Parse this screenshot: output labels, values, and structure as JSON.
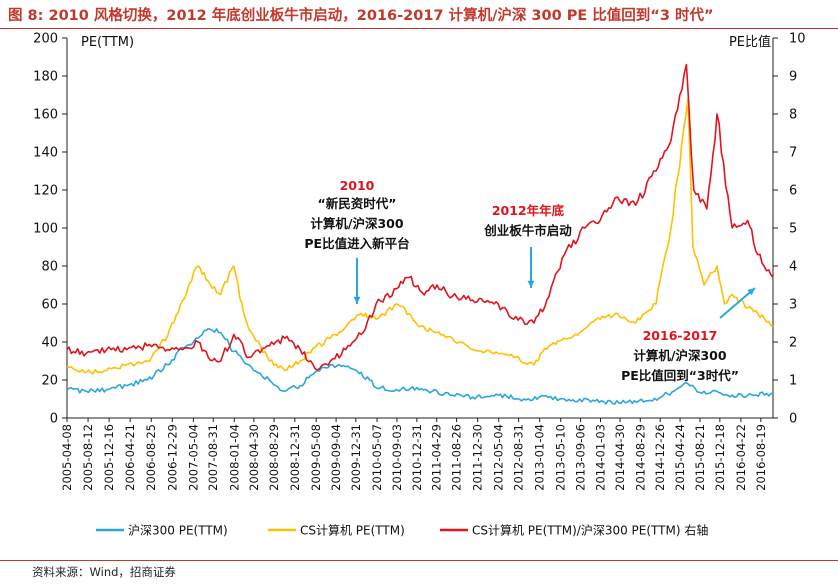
{
  "figure": {
    "title": "图 8:  2010 风格切换，2012 年底创业板牛市启动，2016-2017 计算机/沪深 300 PE 比值回到“3 时代”",
    "source": "资料来源：Wind，招商证券"
  },
  "colors": {
    "hs300": "#2aa6dc",
    "cs_computer": "#ffc000",
    "ratio": "#e0141e",
    "title_red": "#c0392b",
    "arrow": "#29a8df"
  },
  "chart_data": {
    "type": "line",
    "left_axis": {
      "label": "PE(TTM)",
      "range": [
        0,
        200
      ],
      "ticks": [
        "0",
        "20",
        "40",
        "60",
        "80",
        "100",
        "120",
        "140",
        "160",
        "180",
        "200"
      ]
    },
    "right_axis": {
      "label": "PE比值",
      "range": [
        0,
        10
      ],
      "ticks": [
        "0",
        "1",
        "2",
        "3",
        "4",
        "5",
        "6",
        "7",
        "8",
        "9",
        "10"
      ]
    },
    "x_range": [
      "2005-04-08",
      "2016-10-31"
    ],
    "x_ticks": [
      "2005-04-08",
      "2005-08-12",
      "2005-12-16",
      "2006-04-21",
      "2006-08-25",
      "2006-12-29",
      "2007-05-04",
      "2007-08-31",
      "2008-01-04",
      "2008-04-30",
      "2008-08-29",
      "2008-12-31",
      "2009-05-08",
      "2009-09-04",
      "2009-12-31",
      "2010-05-07",
      "2010-09-03",
      "2010-12-31",
      "2011-04-29",
      "2011-08-26",
      "2011-12-30",
      "2012-05-04",
      "2012-08-31",
      "2013-01-04",
      "2013-05-10",
      "2013-09-06",
      "2014-01-03",
      "2014-04-30",
      "2014-08-29",
      "2014-12-26",
      "2015-04-24",
      "2015-08-21",
      "2015-12-18",
      "2016-04-22",
      "2016-08-19"
    ],
    "grid": false,
    "legend_position": "bottom",
    "series": [
      {
        "name": "沪深300 PE(TTM)",
        "axis": "left",
        "x": [
          "2005-04-08",
          "2005-08-01",
          "2005-12-01",
          "2006-04-01",
          "2006-08-01",
          "2006-12-01",
          "2007-03-01",
          "2007-06-01",
          "2007-08-01",
          "2007-10-15",
          "2008-01-01",
          "2008-04-01",
          "2008-08-01",
          "2008-11-01",
          "2009-02-01",
          "2009-05-01",
          "2009-08-01",
          "2009-11-01",
          "2010-02-01",
          "2010-05-01",
          "2010-09-01",
          "2011-01-01",
          "2011-04-01",
          "2011-08-01",
          "2011-12-01",
          "2012-05-01",
          "2012-10-01",
          "2013-01-01",
          "2013-06-01",
          "2013-12-01",
          "2014-06-01",
          "2014-10-01",
          "2015-01-01",
          "2015-04-01",
          "2015-06-10",
          "2015-09-01",
          "2015-12-01",
          "2016-03-01",
          "2016-06-01",
          "2016-10-31"
        ],
        "values": [
          15,
          14,
          15,
          17,
          20,
          28,
          37,
          42,
          47,
          45,
          35,
          28,
          20,
          14,
          17,
          24,
          28,
          27,
          24,
          16,
          15,
          16,
          14,
          12,
          11,
          12,
          10,
          11,
          10,
          9,
          8,
          9,
          11,
          15,
          18,
          13,
          14,
          12,
          12,
          13
        ]
      },
      {
        "name": "CS计算机 PE(TTM)",
        "axis": "left",
        "x": [
          "2005-04-08",
          "2005-08-01",
          "2005-12-01",
          "2006-04-01",
          "2006-08-01",
          "2006-12-01",
          "2007-03-01",
          "2007-06-01",
          "2007-08-01",
          "2007-10-15",
          "2008-01-01",
          "2008-03-01",
          "2008-04-15",
          "2008-08-01",
          "2008-11-01",
          "2009-02-01",
          "2009-05-01",
          "2009-08-01",
          "2009-11-01",
          "2010-02-01",
          "2010-05-01",
          "2010-09-01",
          "2010-11-15",
          "2011-01-15",
          "2011-04-01",
          "2011-08-01",
          "2011-12-01",
          "2012-05-01",
          "2012-08-01",
          "2012-12-01",
          "2013-03-01",
          "2013-06-01",
          "2013-09-01",
          "2014-01-01",
          "2014-04-01",
          "2014-08-01",
          "2014-12-01",
          "2015-03-01",
          "2015-06-10",
          "2015-07-10",
          "2015-09-15",
          "2015-12-01",
          "2016-01-15",
          "2016-03-01",
          "2016-06-01",
          "2016-08-01",
          "2016-10-31"
        ],
        "values": [
          27,
          24,
          25,
          28,
          30,
          43,
          62,
          80,
          72,
          65,
          80,
          55,
          45,
          30,
          25,
          30,
          37,
          42,
          48,
          55,
          52,
          60,
          55,
          48,
          46,
          42,
          36,
          34,
          32,
          28,
          38,
          42,
          45,
          52,
          55,
          50,
          60,
          100,
          168,
          90,
          70,
          80,
          60,
          65,
          58,
          55,
          48
        ]
      },
      {
        "name": "CS计算机 PE(TTM)/沪深300 PE(TTM) 右轴",
        "axis": "right",
        "x": [
          "2005-04-08",
          "2005-08-01",
          "2005-12-01",
          "2006-04-01",
          "2006-08-01",
          "2006-12-01",
          "2007-03-01",
          "2007-06-01",
          "2007-08-01",
          "2007-10-15",
          "2008-01-01",
          "2008-04-01",
          "2008-08-01",
          "2008-11-01",
          "2009-02-01",
          "2009-05-01",
          "2009-08-01",
          "2009-11-01",
          "2010-02-01",
          "2010-05-01",
          "2010-09-01",
          "2010-11-15",
          "2011-02-01",
          "2011-05-01",
          "2011-08-01",
          "2011-12-01",
          "2012-05-01",
          "2012-08-01",
          "2012-12-01",
          "2013-03-01",
          "2013-06-01",
          "2013-10-01",
          "2014-01-01",
          "2014-04-01",
          "2014-08-01",
          "2014-12-01",
          "2015-03-01",
          "2015-06-01",
          "2015-07-15",
          "2015-10-01",
          "2015-12-01",
          "2016-03-01",
          "2016-06-01",
          "2016-08-01",
          "2016-10-31"
        ],
        "values": [
          1.8,
          1.7,
          1.8,
          1.8,
          1.9,
          1.8,
          1.8,
          2.0,
          1.6,
          1.5,
          2.2,
          1.6,
          1.9,
          2.1,
          1.8,
          1.3,
          1.5,
          1.8,
          2.2,
          3.0,
          3.4,
          3.7,
          3.3,
          3.5,
          3.2,
          3.1,
          3.0,
          2.6,
          2.5,
          3.2,
          4.3,
          5.0,
          5.2,
          5.8,
          5.6,
          6.5,
          7.3,
          9.3,
          6.0,
          5.5,
          8.0,
          5.0,
          5.2,
          4.3,
          3.7
        ]
      }
    ],
    "annotations": [
      {
        "lines": [
          "2010"
        ],
        "color": "red"
      },
      {
        "lines": [
          "“新民资时代”",
          "计算机/沪深300",
          "PE比值进入新平台"
        ],
        "color": "black"
      },
      {
        "lines": [
          "2012年年底"
        ],
        "color": "red"
      },
      {
        "lines": [
          "创业板牛市启动"
        ],
        "color": "black"
      },
      {
        "lines": [
          "2016-2017"
        ],
        "color": "red"
      },
      {
        "lines": [
          "计算机/沪深300",
          "PE比值回到“3时代”"
        ],
        "color": "black"
      }
    ]
  }
}
